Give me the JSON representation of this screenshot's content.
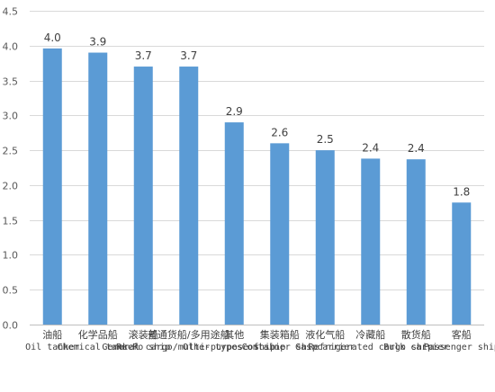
{
  "chart_data": {
    "type": "bar",
    "title": "",
    "xlabel": "",
    "ylabel": "",
    "ylim": [
      0,
      4.5
    ],
    "yticks": [
      "0.0",
      "0.5",
      "1.0",
      "1.5",
      "2.0",
      "2.5",
      "3.0",
      "3.5",
      "4.0",
      "4.5"
    ],
    "grid": true,
    "legend": "none",
    "bar_color": "#5B9BD5",
    "categories": [
      {
        "zh": "油船",
        "en": "Oil tanker"
      },
      {
        "zh": "化学品船",
        "en": "Chemical tanker"
      },
      {
        "zh": "滚装船",
        "en": "Ro-Ro ship"
      },
      {
        "zh": "普通货船/多用途船",
        "en": "General cargo/multi-purpose ship"
      },
      {
        "zh": "其他",
        "en": "Other types of ship"
      },
      {
        "zh": "集装箱船",
        "en": "Container ship"
      },
      {
        "zh": "液化气船",
        "en": "Gas carrier"
      },
      {
        "zh": "冷藏船",
        "en": "Refrigerated cargo ship"
      },
      {
        "zh": "散货船",
        "en": "Bulk carrier"
      },
      {
        "zh": "客船",
        "en": "Passenger ship"
      }
    ],
    "values": [
      3.96,
      3.9,
      3.7,
      3.7,
      2.9,
      2.6,
      2.5,
      2.38,
      2.37,
      1.75
    ],
    "value_labels": [
      "4.0",
      "3.9",
      "3.7",
      "3.7",
      "2.9",
      "2.6",
      "2.5",
      "2.4",
      "2.4",
      "1.8"
    ]
  }
}
